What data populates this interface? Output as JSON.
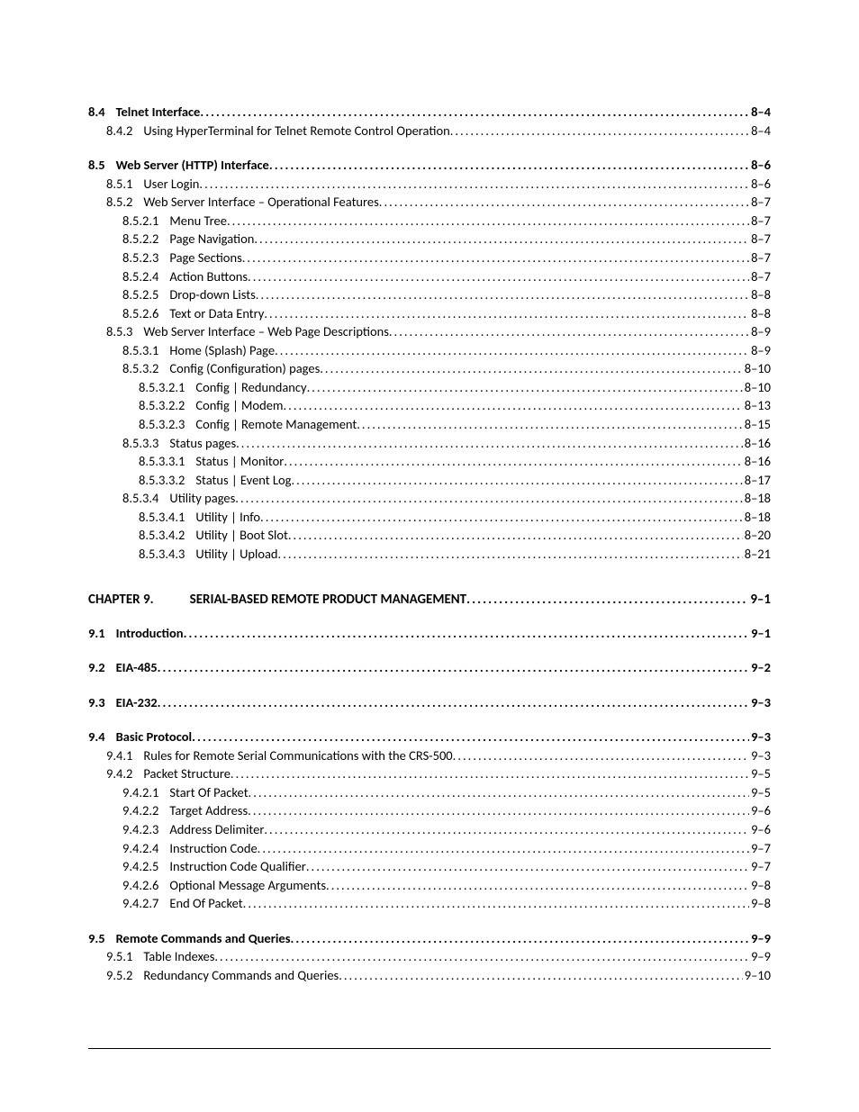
{
  "colors": {
    "background": "#ffffff",
    "text": "#000000",
    "rule": "#000000"
  },
  "typography": {
    "font_family": "Calibri",
    "body_fontsize_pt": 11,
    "chapter_fontsize_pt": 11.5,
    "line_height": 1.35
  },
  "chapter": {
    "label": "CHAPTER 9.",
    "title": "SERIAL-BASED REMOTE PRODUCT MANAGEMENT",
    "page": "9–1"
  },
  "entries": [
    {
      "num": "8.4",
      "title": "Telnet Interface",
      "page": "8–4",
      "level": 0,
      "bold": true,
      "gap_before": ""
    },
    {
      "num": "8.4.2",
      "title": "Using HyperTerminal for Telnet Remote Control Operation",
      "page": "8–4",
      "level": 1,
      "bold": false,
      "gap_before": ""
    },
    {
      "num": "8.5",
      "title": "Web Server (HTTP) Interface",
      "page": "8–6",
      "level": 0,
      "bold": true,
      "gap_before": "md"
    },
    {
      "num": "8.5.1",
      "title": "User Login",
      "page": "8–6",
      "level": 1,
      "bold": false,
      "gap_before": ""
    },
    {
      "num": "8.5.2",
      "title": "Web Server Interface – Operational Features",
      "page": "8–7",
      "level": 1,
      "bold": false,
      "gap_before": ""
    },
    {
      "num": "8.5.2.1",
      "title": "Menu Tree",
      "page": "8–7",
      "level": 2,
      "bold": false,
      "gap_before": ""
    },
    {
      "num": "8.5.2.2",
      "title": "Page Navigation",
      "page": "8–7",
      "level": 2,
      "bold": false,
      "gap_before": ""
    },
    {
      "num": "8.5.2.3",
      "title": "Page Sections",
      "page": "8–7",
      "level": 2,
      "bold": false,
      "gap_before": ""
    },
    {
      "num": "8.5.2.4",
      "title": "Action Buttons",
      "page": "8–7",
      "level": 2,
      "bold": false,
      "gap_before": ""
    },
    {
      "num": "8.5.2.5",
      "title": "Drop-down Lists",
      "page": "8–8",
      "level": 2,
      "bold": false,
      "gap_before": ""
    },
    {
      "num": "8.5.2.6",
      "title": "Text or Data Entry",
      "page": "8–8",
      "level": 2,
      "bold": false,
      "gap_before": ""
    },
    {
      "num": "8.5.3",
      "title": "Web Server Interface – Web Page Descriptions",
      "page": "8–9",
      "level": 1,
      "bold": false,
      "gap_before": ""
    },
    {
      "num": "8.5.3.1",
      "title": "Home (Splash) Page",
      "page": "8–9",
      "level": 2,
      "bold": false,
      "gap_before": ""
    },
    {
      "num": "8.5.3.2",
      "title": "Config (Configuration) pages",
      "page": "8–10",
      "level": 2,
      "bold": false,
      "gap_before": ""
    },
    {
      "num": "8.5.3.2.1",
      "title": "Config | Redundancy",
      "page": "8–10",
      "level": 3,
      "bold": false,
      "gap_before": ""
    },
    {
      "num": "8.5.3.2.2",
      "title": "Config | Modem",
      "page": "8–13",
      "level": 3,
      "bold": false,
      "gap_before": ""
    },
    {
      "num": "8.5.3.2.3",
      "title": "Config | Remote Management",
      "page": "8–15",
      "level": 3,
      "bold": false,
      "gap_before": ""
    },
    {
      "num": "8.5.3.3",
      "title": "Status pages",
      "page": "8–16",
      "level": 2,
      "bold": false,
      "gap_before": ""
    },
    {
      "num": "8.5.3.3.1",
      "title": "Status | Monitor",
      "page": "8–16",
      "level": 3,
      "bold": false,
      "gap_before": ""
    },
    {
      "num": "8.5.3.3.2",
      "title": "Status | Event Log",
      "page": "8–17",
      "level": 3,
      "bold": false,
      "gap_before": ""
    },
    {
      "num": "8.5.3.4",
      "title": "Utility pages",
      "page": "8–18",
      "level": 2,
      "bold": false,
      "gap_before": ""
    },
    {
      "num": "8.5.3.4.1",
      "title": "Utility | Info",
      "page": "8–18",
      "level": 3,
      "bold": false,
      "gap_before": ""
    },
    {
      "num": "8.5.3.4.2",
      "title": "Utility | Boot Slot",
      "page": "8–20",
      "level": 3,
      "bold": false,
      "gap_before": ""
    },
    {
      "num": "8.5.3.4.3",
      "title": "Utility | Upload",
      "page": "8–21",
      "level": 3,
      "bold": false,
      "gap_before": ""
    },
    {
      "type": "chapter",
      "gap_before": "lg"
    },
    {
      "num": "9.1",
      "title": "Introduction",
      "page": "9–1",
      "level": 0,
      "bold": true,
      "gap_before": "md"
    },
    {
      "num": "9.2",
      "title": "EIA-485",
      "page": "9–2",
      "level": 0,
      "bold": true,
      "gap_before": "md"
    },
    {
      "num": "9.3",
      "title": "EIA-232",
      "page": "9–3",
      "level": 0,
      "bold": true,
      "gap_before": "md"
    },
    {
      "num": "9.4",
      "title": "Basic Protocol",
      "page": "9–3",
      "level": 0,
      "bold": true,
      "gap_before": "md"
    },
    {
      "num": "9.4.1",
      "title": "Rules for Remote Serial Communications with the CRS-500",
      "page": "9–3",
      "level": 1,
      "bold": false,
      "gap_before": ""
    },
    {
      "num": "9.4.2",
      "title": "Packet Structure",
      "page": "9–5",
      "level": 1,
      "bold": false,
      "gap_before": ""
    },
    {
      "num": "9.4.2.1",
      "title": "Start Of Packet",
      "page": "9–5",
      "level": 2,
      "bold": false,
      "gap_before": ""
    },
    {
      "num": "9.4.2.2",
      "title": "Target Address",
      "page": "9–6",
      "level": 2,
      "bold": false,
      "gap_before": ""
    },
    {
      "num": "9.4.2.3",
      "title": "Address Delimiter",
      "page": "9–6",
      "level": 2,
      "bold": false,
      "gap_before": ""
    },
    {
      "num": "9.4.2.4",
      "title": "Instruction Code",
      "page": "9–7",
      "level": 2,
      "bold": false,
      "gap_before": ""
    },
    {
      "num": "9.4.2.5",
      "title": "Instruction Code Qualifier",
      "page": "9–7",
      "level": 2,
      "bold": false,
      "gap_before": ""
    },
    {
      "num": "9.4.2.6",
      "title": "Optional Message Arguments",
      "page": "9–8",
      "level": 2,
      "bold": false,
      "gap_before": ""
    },
    {
      "num": "9.4.2.7",
      "title": "End Of Packet",
      "page": "9–8",
      "level": 2,
      "bold": false,
      "gap_before": ""
    },
    {
      "num": "9.5",
      "title": "Remote Commands and Queries",
      "page": "9–9",
      "level": 0,
      "bold": true,
      "gap_before": "md"
    },
    {
      "num": "9.5.1",
      "title": "Table Indexes",
      "page": "9–9",
      "level": 1,
      "bold": false,
      "gap_before": ""
    },
    {
      "num": "9.5.2",
      "title": "Redundancy Commands and Queries",
      "page": "9–10",
      "level": 1,
      "bold": false,
      "gap_before": ""
    }
  ]
}
